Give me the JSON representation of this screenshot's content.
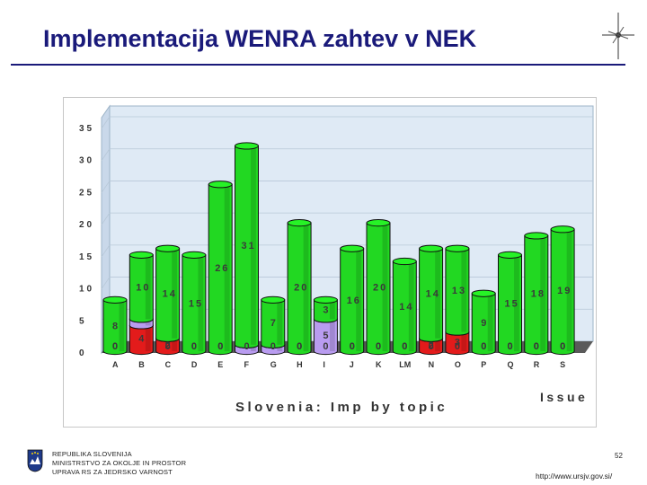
{
  "slide": {
    "title": "Implementacija WENRA zahtev v NEK",
    "page_number": "52",
    "url": "http://www.ursjv.gov.si/",
    "footer_lines": [
      "REPUBLIKA SLOVENIJA",
      "MINISTRSTVO ZA OKOLJE IN PROSTOR",
      "UPRAVA RS ZA JEDRSKO VARNOST"
    ]
  },
  "chart_data": {
    "type": "bar",
    "title": "Slovenia:  Imp by topic",
    "xlabel": "Issue",
    "ylabel": "",
    "ylim": [
      0,
      35
    ],
    "yticks": [
      "0",
      "5",
      "10",
      "15",
      "20",
      "25",
      "30",
      "35"
    ],
    "categories": [
      "A",
      "B",
      "C",
      "D",
      "E",
      "F",
      "G",
      "H",
      "I",
      "J",
      "K",
      "LM",
      "N",
      "O",
      "P",
      "Q",
      "R",
      "S"
    ],
    "series": [
      {
        "color": "#e31b1b",
        "values": [
          0,
          4,
          2,
          0,
          0,
          0,
          0,
          0,
          0,
          0,
          0,
          0,
          2,
          3,
          0,
          0,
          0,
          0
        ]
      },
      {
        "color": "#b99cf0",
        "values": [
          0,
          1,
          0,
          0,
          0,
          1,
          1,
          0,
          5,
          0,
          0,
          0,
          0,
          0,
          0,
          0,
          0,
          0
        ]
      },
      {
        "color": "#22d822",
        "values": [
          8,
          10,
          14,
          15,
          26,
          31,
          7,
          20,
          3,
          16,
          20,
          14,
          14,
          13,
          9,
          15,
          18,
          19
        ]
      }
    ],
    "data_labels": [
      [
        "0",
        "0",
        "8"
      ],
      [
        "4",
        "",
        "10"
      ],
      [
        "2",
        "0",
        "14"
      ],
      [
        "0",
        "0",
        "15"
      ],
      [
        "0",
        "0",
        "26"
      ],
      [
        "0",
        "",
        "31"
      ],
      [
        "0",
        "",
        "7"
      ],
      [
        "0",
        "0",
        "20"
      ],
      [
        "0",
        "5",
        "3"
      ],
      [
        "0",
        "0",
        "16"
      ],
      [
        "0",
        "0",
        "20"
      ],
      [
        "0",
        "0",
        "14"
      ],
      [
        "2",
        "0",
        "14"
      ],
      [
        "3",
        "0",
        "13"
      ],
      [
        "0",
        "0",
        "9"
      ],
      [
        "0",
        "0",
        "15"
      ],
      [
        "0",
        "0",
        "18"
      ],
      [
        "0",
        "0",
        "19"
      ]
    ],
    "grid": true,
    "legend": "none"
  }
}
